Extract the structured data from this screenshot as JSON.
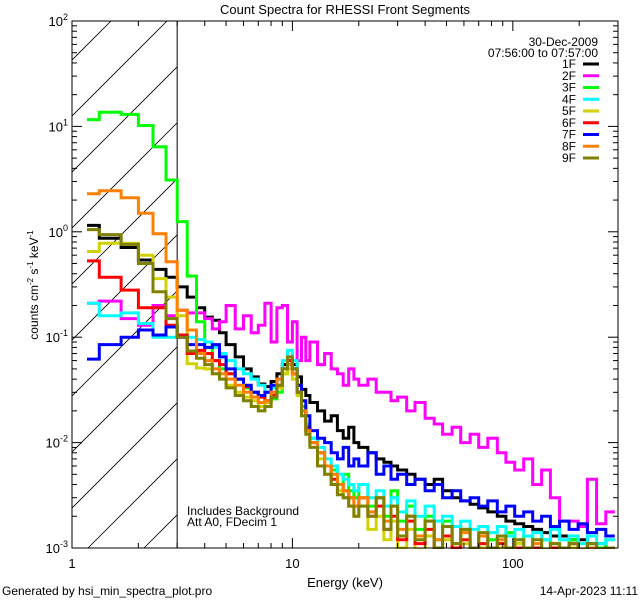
{
  "chart_data": {
    "type": "line",
    "title": "Count Spectra for RHESSI Front Segments",
    "xlabel": "Energy (keV)",
    "ylabel": {
      "base": "counts cm",
      "e1": "-2",
      "mid1": " s",
      "e2": "-1",
      "mid2": " keV",
      "e3": "-1"
    },
    "xscale": "log",
    "yscale": "log",
    "xlim": [
      1,
      300
    ],
    "ylim": [
      0.001,
      100
    ],
    "x_ticks": [
      {
        "value": 1,
        "label": "1"
      },
      {
        "value": 10,
        "label": "10"
      },
      {
        "value": 100,
        "label": "100"
      }
    ],
    "y_ticks": [
      {
        "value": 100,
        "base": "10",
        "exp": "2"
      },
      {
        "value": 10,
        "base": "10",
        "exp": "1"
      },
      {
        "value": 1,
        "base": "10",
        "exp": "0"
      },
      {
        "value": 0.1,
        "base": "10",
        "exp": "-1"
      },
      {
        "value": 0.01,
        "base": "10",
        "exp": "-2"
      },
      {
        "value": 0.001,
        "base": "10",
        "exp": "-3"
      }
    ],
    "hatched_region_keV": [
      1,
      3
    ],
    "date": "30-Dec-2009",
    "time_range": "07:56:00 to 07:57:00",
    "legend_placement": "top-right",
    "annotations": [
      "Includes Background",
      "Att A0, FDecim 1"
    ],
    "bin_edges_keV": [
      1.17,
      1.33,
      1.67,
      2,
      2.33,
      2.67,
      3,
      3.33,
      3.67,
      4,
      4.33,
      4.67,
      5,
      5.5,
      6,
      6.5,
      7,
      7.5,
      8,
      8.5,
      9,
      9.5,
      10,
      10.5,
      11,
      11.5,
      12,
      13,
      14,
      15,
      16,
      17,
      18,
      19,
      20,
      22,
      24,
      26,
      28,
      30,
      33,
      36,
      40,
      44,
      48,
      53,
      58,
      64,
      70,
      77,
      85,
      93,
      102,
      112,
      123,
      135,
      148,
      163,
      180,
      198,
      218,
      240,
      264,
      290
    ],
    "series": [
      {
        "name": "1F",
        "color": "#000000",
        "values": [
          1.15,
          0.87,
          0.71,
          0.54,
          0.44,
          0.37,
          0.3,
          0.24,
          0.19,
          0.155,
          0.145,
          0.11,
          0.085,
          0.065,
          0.05,
          0.042,
          0.036,
          0.034,
          0.038,
          0.045,
          0.055,
          0.06,
          0.055,
          0.042,
          0.032,
          0.028,
          0.024,
          0.02,
          0.016,
          0.018,
          0.013,
          0.011,
          0.014,
          0.01,
          0.009,
          0.008,
          0.007,
          0.0065,
          0.006,
          0.0055,
          0.005,
          0.0045,
          0.004,
          0.0045,
          0.0035,
          0.003,
          0.0028,
          0.0026,
          0.0024,
          0.0022,
          0.002,
          0.0018,
          0.0017,
          0.0016,
          0.0015,
          0.0014,
          0.0013,
          0.0013,
          0.0012,
          0.0012,
          0.0011,
          0.0011,
          0.001
        ]
      },
      {
        "name": "2F",
        "color": "#ff00ff",
        "values": [
          0.21,
          0.22,
          0.15,
          0.13,
          0.2,
          0.16,
          0.18,
          0.17,
          0.17,
          0.15,
          0.12,
          0.14,
          0.2,
          0.12,
          0.16,
          0.11,
          0.13,
          0.21,
          0.09,
          0.19,
          0.2,
          0.09,
          0.14,
          0.06,
          0.1,
          0.06,
          0.09,
          0.055,
          0.07,
          0.05,
          0.045,
          0.035,
          0.05,
          0.04,
          0.035,
          0.04,
          0.03,
          0.03,
          0.025,
          0.027,
          0.02,
          0.024,
          0.017,
          0.015,
          0.012,
          0.014,
          0.01,
          0.012,
          0.009,
          0.011,
          0.008,
          0.0065,
          0.0055,
          0.007,
          0.004,
          0.0055,
          0.003,
          0.0018,
          0.0018,
          0.0016,
          0.0045,
          0.0017,
          0.0022
        ]
      },
      {
        "name": "3F",
        "color": "#00ff00",
        "values": [
          11.6,
          13.6,
          13,
          10.2,
          6.4,
          3.1,
          1.25,
          0.38,
          0.14,
          0.08,
          0.06,
          0.05,
          0.045,
          0.04,
          0.033,
          0.03,
          0.027,
          0.025,
          0.026,
          0.03,
          0.045,
          0.06,
          0.05,
          0.035,
          0.022,
          0.015,
          0.011,
          0.008,
          0.006,
          0.0055,
          0.004,
          0.005,
          0.0035,
          0.003,
          0.004,
          0.0025,
          0.003,
          0.002,
          0.0035,
          0.0018,
          0.0025,
          0.0015,
          0.002,
          0.0012,
          0.0018,
          0.0011,
          0.0015,
          0.0009,
          0.0013,
          0.0012,
          0.0009,
          0.0014,
          0.0011,
          0.0013,
          0.0009,
          0.0012,
          0.0011,
          0.001,
          0.0012,
          0.0009,
          0.0011,
          0.001,
          0.0012
        ]
      },
      {
        "name": "4F",
        "color": "#00ffff",
        "values": [
          0.21,
          0.16,
          0.17,
          0.135,
          0.1,
          0.1,
          0.1,
          0.1,
          0.095,
          0.09,
          0.08,
          0.07,
          0.06,
          0.05,
          0.045,
          0.04,
          0.035,
          0.03,
          0.033,
          0.04,
          0.06,
          0.075,
          0.06,
          0.03,
          0.02,
          0.015,
          0.011,
          0.009,
          0.007,
          0.006,
          0.005,
          0.0045,
          0.004,
          0.0035,
          0.004,
          0.003,
          0.0035,
          0.0025,
          0.003,
          0.0022,
          0.0028,
          0.002,
          0.0025,
          0.0018,
          0.002,
          0.0016,
          0.0018,
          0.0015,
          0.0016,
          0.0014,
          0.0016,
          0.0013,
          0.0015,
          0.0013,
          0.0014,
          0.0012,
          0.0015,
          0.0012,
          0.0013,
          0.0011,
          0.0013,
          0.0011,
          0.0012
        ]
      },
      {
        "name": "5F",
        "color": "#d2d200",
        "values": [
          0.65,
          0.78,
          0.78,
          0.6,
          0.36,
          0.24,
          0.16,
          0.056,
          0.051,
          0.05,
          0.045,
          0.04,
          0.035,
          0.03,
          0.027,
          0.025,
          0.022,
          0.024,
          0.028,
          0.033,
          0.045,
          0.05,
          0.04,
          0.028,
          0.02,
          0.013,
          0.01,
          0.007,
          0.005,
          0.004,
          0.0035,
          0.003,
          0.0025,
          0.002,
          0.0025,
          0.0015,
          0.002,
          0.0012,
          0.0018,
          0.001,
          0.0015,
          0.0009,
          0.0013,
          0.0008,
          0.0012,
          0.0009,
          0.0011,
          0.0008,
          0.001,
          0.0009,
          0.001,
          0.0008,
          0.0011,
          0.0009,
          0.001,
          0.0008,
          0.001,
          0.0009,
          0.001,
          0.0008,
          0.0009,
          0.0008,
          0.0009
        ]
      },
      {
        "name": "6F",
        "color": "#ff0000",
        "values": [
          0.53,
          0.37,
          0.28,
          0.19,
          0.19,
          0.13,
          0.105,
          0.07,
          0.075,
          0.07,
          0.06,
          0.055,
          0.045,
          0.04,
          0.034,
          0.03,
          0.027,
          0.025,
          0.028,
          0.035,
          0.05,
          0.06,
          0.045,
          0.03,
          0.02,
          0.014,
          0.01,
          0.008,
          0.006,
          0.0045,
          0.004,
          0.0035,
          0.003,
          0.0025,
          0.003,
          0.002,
          0.0025,
          0.0015,
          0.002,
          0.0012,
          0.0018,
          0.0011,
          0.0015,
          0.0009,
          0.0013,
          0.001,
          0.0012,
          0.0009,
          0.0011,
          0.001,
          0.0011,
          0.0009,
          0.001,
          0.0009,
          0.001,
          0.0009,
          0.001,
          0.0009,
          0.0011,
          0.0009,
          0.001,
          0.0009,
          0.001
        ]
      },
      {
        "name": "7F",
        "color": "#0000ff",
        "values": [
          0.062,
          0.085,
          0.1,
          0.117,
          0.105,
          0.125,
          0.1,
          0.085,
          0.085,
          0.08,
          0.085,
          0.065,
          0.05,
          0.04,
          0.035,
          0.03,
          0.028,
          0.03,
          0.035,
          0.04,
          0.05,
          0.055,
          0.05,
          0.035,
          0.025,
          0.018,
          0.013,
          0.011,
          0.01,
          0.008,
          0.007,
          0.009,
          0.006,
          0.007,
          0.006,
          0.008,
          0.005,
          0.006,
          0.0045,
          0.005,
          0.004,
          0.0045,
          0.0035,
          0.004,
          0.003,
          0.0035,
          0.0028,
          0.003,
          0.0025,
          0.0028,
          0.0022,
          0.0025,
          0.002,
          0.0022,
          0.0018,
          0.002,
          0.0016,
          0.0018,
          0.0015,
          0.0017,
          0.0014,
          0.0015,
          0.0013
        ]
      },
      {
        "name": "8F",
        "color": "#ff8000",
        "values": [
          2.3,
          2.45,
          2.1,
          1.5,
          0.96,
          0.52,
          0.18,
          0.117,
          0.07,
          0.06,
          0.05,
          0.045,
          0.04,
          0.035,
          0.03,
          0.027,
          0.024,
          0.025,
          0.03,
          0.04,
          0.05,
          0.055,
          0.045,
          0.03,
          0.02,
          0.013,
          0.01,
          0.008,
          0.006,
          0.005,
          0.004,
          0.0035,
          0.003,
          0.0025,
          0.003,
          0.0022,
          0.003,
          0.0018,
          0.0025,
          0.0015,
          0.002,
          0.0013,
          0.0018,
          0.0012,
          0.0016,
          0.0011,
          0.0014,
          0.001,
          0.0013,
          0.001,
          0.0012,
          0.0009,
          0.0012,
          0.001,
          0.0011,
          0.0009,
          0.0011,
          0.001,
          0.0011,
          0.0009,
          0.001,
          0.0009,
          0.001
        ]
      },
      {
        "name": "9F",
        "color": "#808000",
        "values": [
          1.05,
          0.94,
          0.76,
          0.5,
          0.27,
          0.15,
          0.1,
          0.074,
          0.063,
          0.055,
          0.045,
          0.04,
          0.033,
          0.028,
          0.025,
          0.022,
          0.02,
          0.022,
          0.027,
          0.035,
          0.05,
          0.065,
          0.05,
          0.03,
          0.018,
          0.012,
          0.009,
          0.006,
          0.005,
          0.004,
          0.0032,
          0.003,
          0.0025,
          0.002,
          0.0025,
          0.002,
          0.003,
          0.0015,
          0.0025,
          0.0013,
          0.002,
          0.0012,
          0.0018,
          0.001,
          0.0016,
          0.0011,
          0.0015,
          0.001,
          0.0014,
          0.001,
          0.0013,
          0.001,
          0.0012,
          0.001,
          0.0012,
          0.0009,
          0.0011,
          0.001,
          0.0011,
          0.0009,
          0.0011,
          0.0009,
          0.001
        ]
      }
    ]
  },
  "footer": {
    "generated_by": "Generated by hsi_min_spectra_plot.pro",
    "timestamp": "14-Apr-2023 11:11"
  }
}
